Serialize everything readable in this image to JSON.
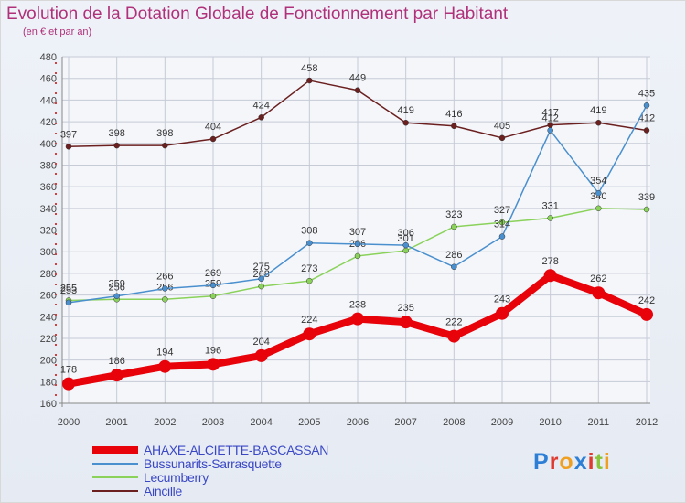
{
  "chart_data": {
    "type": "line",
    "title": "Evolution de la Dotation Globale de Fonctionnement par Habitant",
    "subtitle": "(en € et par an)",
    "xlabel": "",
    "ylabel": "",
    "categories": [
      "2000",
      "2001",
      "2002",
      "2003",
      "2004",
      "2005",
      "2006",
      "2007",
      "2008",
      "2009",
      "2010",
      "2011",
      "2012"
    ],
    "ylim": [
      160,
      480
    ],
    "yticks": [
      160,
      180,
      200,
      220,
      240,
      260,
      280,
      300,
      320,
      340,
      360,
      380,
      400,
      420,
      440,
      460,
      480
    ],
    "grid": true,
    "legend_position": "bottom-left",
    "series": [
      {
        "name": "AHAXE-ALCIETTE-BASCASSAN",
        "color": "#e8020a",
        "values": [
          178,
          186,
          194,
          196,
          204,
          224,
          238,
          235,
          222,
          243,
          278,
          262,
          242
        ]
      },
      {
        "name": "Bussunarits-Sarrasquette",
        "color": "#4a8fce",
        "values": [
          253,
          259,
          266,
          269,
          275,
          308,
          307,
          306,
          286,
          314,
          412,
          354,
          435
        ]
      },
      {
        "name": "Lecumberry",
        "color": "#8ad25a",
        "values": [
          255,
          256,
          256,
          259,
          268,
          273,
          296,
          301,
          323,
          327,
          331,
          340,
          339
        ]
      },
      {
        "name": "Aincille",
        "color": "#6b1f1f",
        "values": [
          397,
          398,
          398,
          404,
          424,
          458,
          449,
          419,
          416,
          405,
          417,
          419,
          412
        ]
      }
    ]
  },
  "logo": {
    "text": "Proxiti",
    "letters": [
      "P",
      "r",
      "o",
      "x",
      "i",
      "t",
      "i"
    ],
    "colors": [
      "#2d7fd6",
      "#e03a2e",
      "#f0a020",
      "#2d7fd6",
      "#e03a2e",
      "#8ac43a",
      "#f0a020"
    ]
  }
}
